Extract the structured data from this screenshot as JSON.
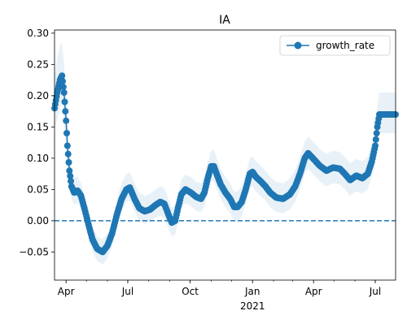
{
  "chart_data": {
    "type": "line",
    "title": "IA",
    "xlabel": "",
    "ylabel": "",
    "x_start": "2020-03-15",
    "x_end": "2021-07-31",
    "xlim": [
      "2020-03-15",
      "2021-07-31"
    ],
    "ylim": [
      -0.095,
      0.305
    ],
    "grid": false,
    "legend": "top-right",
    "yticks": [
      {
        "value": -0.05,
        "label": "−0.05"
      },
      {
        "value": 0.0,
        "label": "0.00"
      },
      {
        "value": 0.05,
        "label": "0.05"
      },
      {
        "value": 0.1,
        "label": "0.10"
      },
      {
        "value": 0.15,
        "label": "0.15"
      },
      {
        "value": 0.2,
        "label": "0.20"
      },
      {
        "value": 0.25,
        "label": "0.25"
      },
      {
        "value": 0.3,
        "label": "0.30"
      }
    ],
    "xticks": [
      {
        "date": "2020-04-01",
        "label": "Apr"
      },
      {
        "date": "2020-07-01",
        "label": "Jul"
      },
      {
        "date": "2020-10-01",
        "label": "Oct"
      },
      {
        "date": "2021-01-01",
        "label": "Jan"
      },
      {
        "date": "2021-04-01",
        "label": "Apr"
      },
      {
        "date": "2021-07-01",
        "label": "Jul"
      }
    ],
    "year_label": "2021",
    "reference_line": {
      "y": 0.0,
      "style": "dashed",
      "color": "#1f77b4"
    },
    "colors": {
      "series": "#1f77b4",
      "band": "#1f77b4"
    },
    "series": [
      {
        "name": "growth_rate",
        "marker": "circle",
        "points": [
          {
            "x": "2020-03-15",
            "y": 0.18,
            "lo": 0.15,
            "hi": 0.23
          },
          {
            "x": "2020-03-19",
            "y": 0.205,
            "lo": 0.16,
            "hi": 0.26
          },
          {
            "x": "2020-03-23",
            "y": 0.225,
            "lo": 0.18,
            "hi": 0.28
          },
          {
            "x": "2020-03-26",
            "y": 0.232,
            "lo": 0.19,
            "hi": 0.285
          },
          {
            "x": "2020-03-29",
            "y": 0.205,
            "lo": 0.16,
            "hi": 0.25
          },
          {
            "x": "2020-04-01",
            "y": 0.16,
            "lo": 0.12,
            "hi": 0.2
          },
          {
            "x": "2020-04-03",
            "y": 0.12,
            "lo": 0.09,
            "hi": 0.15
          },
          {
            "x": "2020-04-06",
            "y": 0.08,
            "lo": 0.055,
            "hi": 0.11
          },
          {
            "x": "2020-04-09",
            "y": 0.055,
            "lo": 0.035,
            "hi": 0.08
          },
          {
            "x": "2020-04-13",
            "y": 0.045,
            "lo": 0.025,
            "hi": 0.07
          },
          {
            "x": "2020-04-18",
            "y": 0.048,
            "lo": 0.028,
            "hi": 0.07
          },
          {
            "x": "2020-04-23",
            "y": 0.04,
            "lo": 0.02,
            "hi": 0.06
          },
          {
            "x": "2020-04-28",
            "y": 0.02,
            "lo": 0.0,
            "hi": 0.04
          },
          {
            "x": "2020-05-05",
            "y": -0.01,
            "lo": -0.03,
            "hi": 0.01
          },
          {
            "x": "2020-05-10",
            "y": -0.03,
            "lo": -0.05,
            "hi": -0.01
          },
          {
            "x": "2020-05-17",
            "y": -0.045,
            "lo": -0.065,
            "hi": -0.025
          },
          {
            "x": "2020-05-25",
            "y": -0.05,
            "lo": -0.07,
            "hi": -0.03
          },
          {
            "x": "2020-06-01",
            "y": -0.04,
            "lo": -0.06,
            "hi": -0.02
          },
          {
            "x": "2020-06-08",
            "y": -0.02,
            "lo": -0.04,
            "hi": 0.0
          },
          {
            "x": "2020-06-15",
            "y": 0.01,
            "lo": -0.01,
            "hi": 0.035
          },
          {
            "x": "2020-06-22",
            "y": 0.035,
            "lo": 0.015,
            "hi": 0.06
          },
          {
            "x": "2020-06-29",
            "y": 0.05,
            "lo": 0.03,
            "hi": 0.075
          },
          {
            "x": "2020-07-04",
            "y": 0.053,
            "lo": 0.032,
            "hi": 0.078
          },
          {
            "x": "2020-07-11",
            "y": 0.035,
            "lo": 0.015,
            "hi": 0.06
          },
          {
            "x": "2020-07-18",
            "y": 0.02,
            "lo": 0.0,
            "hi": 0.045
          },
          {
            "x": "2020-07-26",
            "y": 0.015,
            "lo": -0.005,
            "hi": 0.04
          },
          {
            "x": "2020-08-03",
            "y": 0.018,
            "lo": -0.002,
            "hi": 0.043
          },
          {
            "x": "2020-08-11",
            "y": 0.025,
            "lo": 0.005,
            "hi": 0.05
          },
          {
            "x": "2020-08-18",
            "y": 0.03,
            "lo": 0.008,
            "hi": 0.055
          },
          {
            "x": "2020-08-24",
            "y": 0.027,
            "lo": 0.005,
            "hi": 0.052
          },
          {
            "x": "2020-08-30",
            "y": 0.01,
            "lo": -0.012,
            "hi": 0.035
          },
          {
            "x": "2020-09-04",
            "y": -0.003,
            "lo": -0.025,
            "hi": 0.02
          },
          {
            "x": "2020-09-09",
            "y": 0.0,
            "lo": -0.022,
            "hi": 0.024
          },
          {
            "x": "2020-09-13",
            "y": 0.02,
            "lo": -0.002,
            "hi": 0.045
          },
          {
            "x": "2020-09-18",
            "y": 0.042,
            "lo": 0.02,
            "hi": 0.066
          },
          {
            "x": "2020-09-24",
            "y": 0.05,
            "lo": 0.028,
            "hi": 0.074
          },
          {
            "x": "2020-10-02",
            "y": 0.045,
            "lo": 0.023,
            "hi": 0.07
          },
          {
            "x": "2020-10-10",
            "y": 0.038,
            "lo": 0.016,
            "hi": 0.062
          },
          {
            "x": "2020-10-17",
            "y": 0.035,
            "lo": 0.013,
            "hi": 0.06
          },
          {
            "x": "2020-10-22",
            "y": 0.045,
            "lo": 0.022,
            "hi": 0.07
          },
          {
            "x": "2020-10-27",
            "y": 0.068,
            "lo": 0.044,
            "hi": 0.093
          },
          {
            "x": "2020-11-01",
            "y": 0.087,
            "lo": 0.063,
            "hi": 0.112
          },
          {
            "x": "2020-11-05",
            "y": 0.087,
            "lo": 0.063,
            "hi": 0.113
          },
          {
            "x": "2020-11-09",
            "y": 0.075,
            "lo": 0.051,
            "hi": 0.1
          },
          {
            "x": "2020-11-15",
            "y": 0.058,
            "lo": 0.035,
            "hi": 0.083
          },
          {
            "x": "2020-11-22",
            "y": 0.045,
            "lo": 0.022,
            "hi": 0.07
          },
          {
            "x": "2020-11-29",
            "y": 0.035,
            "lo": 0.012,
            "hi": 0.06
          },
          {
            "x": "2020-12-05",
            "y": 0.022,
            "lo": -0.001,
            "hi": 0.047
          },
          {
            "x": "2020-12-10",
            "y": 0.022,
            "lo": -0.001,
            "hi": 0.047
          },
          {
            "x": "2020-12-16",
            "y": 0.03,
            "lo": 0.007,
            "hi": 0.055
          },
          {
            "x": "2020-12-22",
            "y": 0.05,
            "lo": 0.027,
            "hi": 0.075
          },
          {
            "x": "2020-12-28",
            "y": 0.075,
            "lo": 0.052,
            "hi": 0.1
          },
          {
            "x": "2021-01-01",
            "y": 0.078,
            "lo": 0.055,
            "hi": 0.103
          },
          {
            "x": "2021-01-06",
            "y": 0.07,
            "lo": 0.047,
            "hi": 0.095
          },
          {
            "x": "2021-01-13",
            "y": 0.063,
            "lo": 0.04,
            "hi": 0.088
          },
          {
            "x": "2021-01-20",
            "y": 0.055,
            "lo": 0.032,
            "hi": 0.08
          },
          {
            "x": "2021-01-27",
            "y": 0.045,
            "lo": 0.022,
            "hi": 0.07
          },
          {
            "x": "2021-02-05",
            "y": 0.037,
            "lo": 0.014,
            "hi": 0.062
          },
          {
            "x": "2021-02-15",
            "y": 0.035,
            "lo": 0.012,
            "hi": 0.06
          },
          {
            "x": "2021-02-25",
            "y": 0.042,
            "lo": 0.018,
            "hi": 0.068
          },
          {
            "x": "2021-03-05",
            "y": 0.055,
            "lo": 0.03,
            "hi": 0.082
          },
          {
            "x": "2021-03-12",
            "y": 0.075,
            "lo": 0.05,
            "hi": 0.102
          },
          {
            "x": "2021-03-19",
            "y": 0.1,
            "lo": 0.075,
            "hi": 0.127
          },
          {
            "x": "2021-03-24",
            "y": 0.108,
            "lo": 0.083,
            "hi": 0.135
          },
          {
            "x": "2021-03-31",
            "y": 0.1,
            "lo": 0.075,
            "hi": 0.127
          },
          {
            "x": "2021-04-10",
            "y": 0.088,
            "lo": 0.063,
            "hi": 0.115
          },
          {
            "x": "2021-04-20",
            "y": 0.08,
            "lo": 0.055,
            "hi": 0.107
          },
          {
            "x": "2021-04-30",
            "y": 0.085,
            "lo": 0.06,
            "hi": 0.112
          },
          {
            "x": "2021-05-10",
            "y": 0.083,
            "lo": 0.058,
            "hi": 0.11
          },
          {
            "x": "2021-05-17",
            "y": 0.075,
            "lo": 0.05,
            "hi": 0.102
          },
          {
            "x": "2021-05-25",
            "y": 0.065,
            "lo": 0.04,
            "hi": 0.092
          },
          {
            "x": "2021-06-03",
            "y": 0.072,
            "lo": 0.047,
            "hi": 0.099
          },
          {
            "x": "2021-06-12",
            "y": 0.068,
            "lo": 0.043,
            "hi": 0.095
          },
          {
            "x": "2021-06-20",
            "y": 0.075,
            "lo": 0.05,
            "hi": 0.102
          },
          {
            "x": "2021-06-26",
            "y": 0.095,
            "lo": 0.07,
            "hi": 0.122
          },
          {
            "x": "2021-07-01",
            "y": 0.12,
            "lo": 0.095,
            "hi": 0.148
          },
          {
            "x": "2021-07-04",
            "y": 0.15,
            "lo": 0.125,
            "hi": 0.18
          },
          {
            "x": "2021-07-07",
            "y": 0.17,
            "lo": 0.14,
            "hi": 0.205
          },
          {
            "x": "2021-07-15",
            "y": 0.17,
            "lo": 0.14,
            "hi": 0.205
          },
          {
            "x": "2021-07-31",
            "y": 0.17,
            "lo": 0.14,
            "hi": 0.205
          }
        ]
      }
    ]
  }
}
